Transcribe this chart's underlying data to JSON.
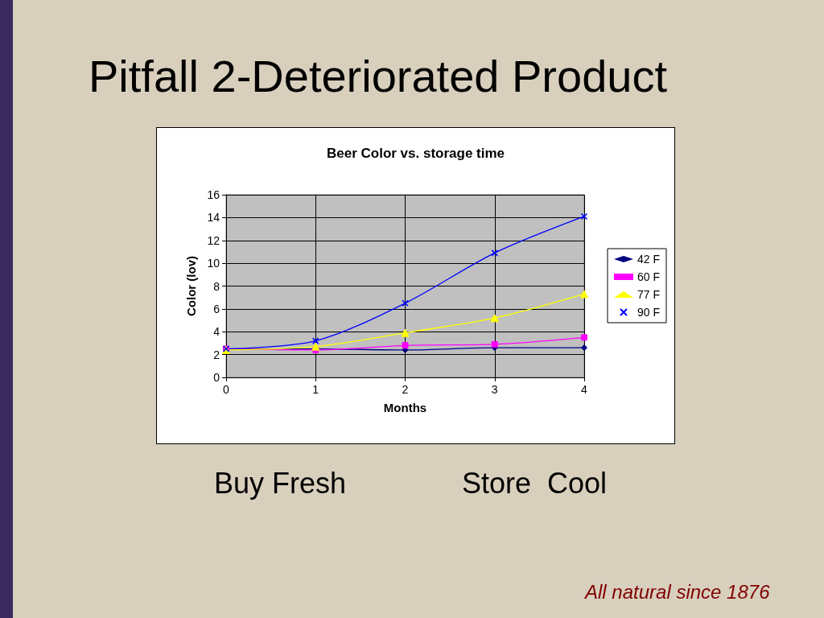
{
  "chart_data": {
    "type": "line",
    "title": "Pitfall 2-Deteriorated Product",
    "subtitle": "Beer Color vs. storage time",
    "xlabel": "Months",
    "ylabel": "Color (lov)",
    "x": [
      0,
      1,
      2,
      3,
      4
    ],
    "series": [
      {
        "name": "42 F",
        "color": "#000080",
        "marker": "diamond",
        "values": [
          2.5,
          2.5,
          2.4,
          2.6,
          2.6
        ]
      },
      {
        "name": "60 F",
        "color": "#ff00ff",
        "marker": "square",
        "values": [
          2.5,
          2.4,
          2.8,
          2.9,
          3.5
        ]
      },
      {
        "name": "77 F",
        "color": "#ffff00",
        "marker": "triangle",
        "values": [
          2.4,
          2.7,
          3.9,
          5.2,
          7.3
        ]
      },
      {
        "name": "90 F",
        "color": "#0000ff",
        "marker": "cross",
        "values": [
          2.5,
          3.2,
          6.5,
          10.9,
          14.1
        ]
      }
    ],
    "xlim": [
      0,
      4
    ],
    "xticks": [
      0,
      1,
      2,
      3,
      4
    ],
    "ylim": [
      0,
      16
    ],
    "yticks": [
      0,
      2,
      4,
      6,
      8,
      10,
      12,
      14,
      16
    ],
    "grid": true,
    "legend": "right",
    "annotations": [
      "Buy Fresh",
      "Store  Cool",
      "All natural since 1876"
    ]
  }
}
